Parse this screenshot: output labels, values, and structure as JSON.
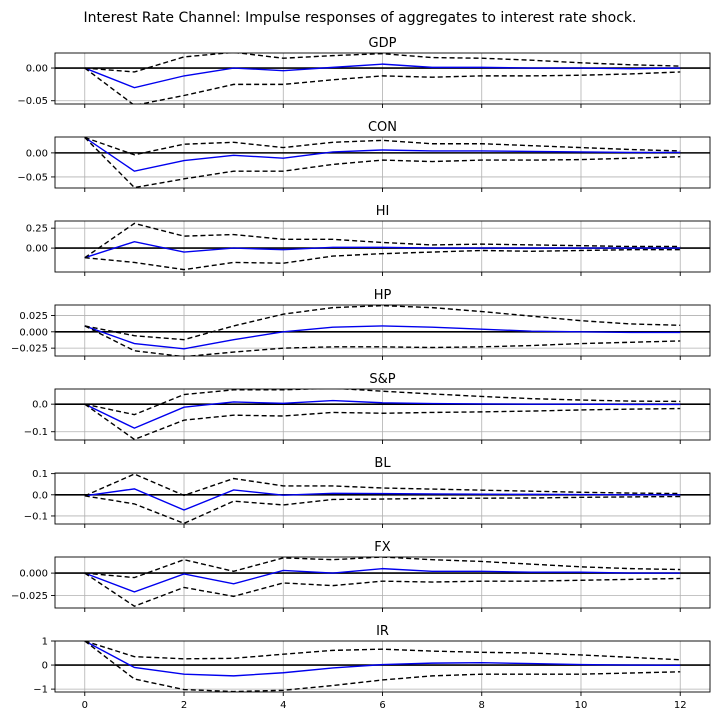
{
  "figure": {
    "title": "Interest Rate Channel: Impulse responses of aggregates to interest rate shock."
  },
  "colors": {
    "irf": "#0000ee",
    "bands": "#000000",
    "zero_line": "#000000",
    "grid": "#b0b0b0"
  },
  "chart_data": [
    {
      "type": "line",
      "title": "GDP",
      "xlabel": "",
      "ylabel": "",
      "x": [
        0,
        1,
        2,
        3,
        4,
        5,
        6,
        7,
        8,
        9,
        10,
        11,
        12
      ],
      "xlim": [
        -0.6,
        12.6
      ],
      "xticks": [
        0,
        2,
        4,
        6,
        8,
        10,
        12
      ],
      "show_xticks": false,
      "ylim": [
        -0.055,
        0.023
      ],
      "yticks": [
        0.0,
        -0.05
      ],
      "ytick_labels": [
        "0.00",
        "−0.05"
      ],
      "grid": true,
      "series": [
        {
          "role": "irf",
          "values": [
            0.0,
            -0.03,
            -0.012,
            0.0,
            -0.004,
            0.001,
            0.006,
            0.001,
            0.001,
            0.0,
            0.0,
            -0.001,
            0.0
          ]
        },
        {
          "role": "upper",
          "values": [
            0.0,
            -0.006,
            0.017,
            0.024,
            0.015,
            0.019,
            0.022,
            0.016,
            0.015,
            0.012,
            0.008,
            0.005,
            0.003
          ]
        },
        {
          "role": "lower",
          "values": [
            0.0,
            -0.057,
            -0.042,
            -0.025,
            -0.025,
            -0.018,
            -0.012,
            -0.014,
            -0.012,
            -0.012,
            -0.011,
            -0.009,
            -0.006
          ]
        }
      ]
    },
    {
      "type": "line",
      "title": "CON",
      "xlabel": "",
      "ylabel": "",
      "x": [
        0,
        1,
        2,
        3,
        4,
        5,
        6,
        7,
        8,
        9,
        10,
        11,
        12
      ],
      "xlim": [
        -0.6,
        12.6
      ],
      "xticks": [
        0,
        2,
        4,
        6,
        8,
        10,
        12
      ],
      "show_xticks": false,
      "ylim": [
        -0.073,
        0.033
      ],
      "yticks": [
        0.0,
        -0.05
      ],
      "ytick_labels": [
        "0.00",
        "−0.05"
      ],
      "grid": true,
      "series": [
        {
          "role": "irf",
          "values": [
            0.032,
            -0.038,
            -0.016,
            -0.005,
            -0.011,
            0.002,
            0.006,
            0.004,
            0.004,
            0.003,
            0.002,
            0.001,
            0.001
          ]
        },
        {
          "role": "upper",
          "values": [
            0.032,
            -0.004,
            0.018,
            0.022,
            0.011,
            0.022,
            0.026,
            0.019,
            0.019,
            0.015,
            0.011,
            0.007,
            0.004
          ]
        },
        {
          "role": "lower",
          "values": [
            0.032,
            -0.072,
            -0.054,
            -0.038,
            -0.038,
            -0.024,
            -0.015,
            -0.018,
            -0.015,
            -0.015,
            -0.014,
            -0.011,
            -0.008
          ]
        }
      ]
    },
    {
      "type": "line",
      "title": "HI",
      "xlabel": "",
      "ylabel": "",
      "x": [
        0,
        1,
        2,
        3,
        4,
        5,
        6,
        7,
        8,
        9,
        10,
        11,
        12
      ],
      "xlim": [
        -0.6,
        12.6
      ],
      "xticks": [
        0,
        2,
        4,
        6,
        8,
        10,
        12
      ],
      "show_xticks": false,
      "ylim": [
        -0.3,
        0.34
      ],
      "yticks": [
        0.25,
        0.0
      ],
      "ytick_labels": [
        "0.25",
        "0.00"
      ],
      "grid": true,
      "series": [
        {
          "role": "irf",
          "values": [
            -0.12,
            0.08,
            -0.05,
            0.0,
            -0.02,
            0.01,
            0.01,
            0.0,
            0.0,
            0.0,
            0.0,
            0.0,
            0.0
          ]
        },
        {
          "role": "upper",
          "values": [
            -0.12,
            0.31,
            0.15,
            0.17,
            0.11,
            0.11,
            0.07,
            0.04,
            0.05,
            0.04,
            0.03,
            0.02,
            0.02
          ]
        },
        {
          "role": "lower",
          "values": [
            -0.12,
            -0.18,
            -0.27,
            -0.18,
            -0.19,
            -0.1,
            -0.07,
            -0.05,
            -0.03,
            -0.04,
            -0.03,
            -0.02,
            -0.02
          ]
        }
      ]
    },
    {
      "type": "line",
      "title": "HP",
      "xlabel": "",
      "ylabel": "",
      "x": [
        0,
        1,
        2,
        3,
        4,
        5,
        6,
        7,
        8,
        9,
        10,
        11,
        12
      ],
      "xlim": [
        -0.6,
        12.6
      ],
      "xticks": [
        0,
        2,
        4,
        6,
        8,
        10,
        12
      ],
      "show_xticks": false,
      "ylim": [
        -0.037,
        0.041
      ],
      "yticks": [
        0.025,
        0.0,
        -0.025
      ],
      "ytick_labels": [
        "0.025",
        "0.000",
        "−0.025"
      ],
      "grid": true,
      "series": [
        {
          "role": "irf",
          "values": [
            0.009,
            -0.018,
            -0.026,
            -0.012,
            0.0,
            0.007,
            0.009,
            0.007,
            0.004,
            0.001,
            0.0,
            -0.001,
            -0.001
          ]
        },
        {
          "role": "upper",
          "values": [
            0.009,
            -0.006,
            -0.012,
            0.009,
            0.027,
            0.037,
            0.04,
            0.037,
            0.031,
            0.024,
            0.017,
            0.012,
            0.01
          ]
        },
        {
          "role": "lower",
          "values": [
            0.009,
            -0.029,
            -0.038,
            -0.031,
            -0.025,
            -0.023,
            -0.023,
            -0.024,
            -0.023,
            -0.021,
            -0.018,
            -0.016,
            -0.014
          ]
        }
      ]
    },
    {
      "type": "line",
      "title": "S&P",
      "xlabel": "",
      "ylabel": "",
      "x": [
        0,
        1,
        2,
        3,
        4,
        5,
        6,
        7,
        8,
        9,
        10,
        11,
        12
      ],
      "xlim": [
        -0.6,
        12.6
      ],
      "xticks": [
        0,
        2,
        4,
        6,
        8,
        10,
        12
      ],
      "show_xticks": false,
      "ylim": [
        -0.13,
        0.055
      ],
      "yticks": [
        0.0,
        -0.1
      ],
      "ytick_labels": [
        "0.0",
        "−0.1"
      ],
      "grid": true,
      "series": [
        {
          "role": "irf",
          "values": [
            0.0,
            -0.087,
            -0.011,
            0.008,
            0.003,
            0.013,
            0.005,
            0.002,
            0.001,
            0.0,
            0.0,
            -0.001,
            -0.001
          ]
        },
        {
          "role": "upper",
          "values": [
            0.0,
            -0.038,
            0.035,
            0.052,
            0.052,
            0.058,
            0.047,
            0.037,
            0.028,
            0.02,
            0.015,
            0.011,
            0.01
          ]
        },
        {
          "role": "lower",
          "values": [
            0.0,
            -0.128,
            -0.058,
            -0.04,
            -0.043,
            -0.03,
            -0.033,
            -0.03,
            -0.028,
            -0.025,
            -0.021,
            -0.018,
            -0.016
          ]
        }
      ]
    },
    {
      "type": "line",
      "title": "BL",
      "xlabel": "",
      "ylabel": "",
      "x": [
        0,
        1,
        2,
        3,
        4,
        5,
        6,
        7,
        8,
        9,
        10,
        11,
        12
      ],
      "xlim": [
        -0.6,
        12.6
      ],
      "xticks": [
        0,
        2,
        4,
        6,
        8,
        10,
        12
      ],
      "show_xticks": false,
      "ylim": [
        -0.138,
        0.103
      ],
      "yticks": [
        0.1,
        0.0,
        -0.1
      ],
      "ytick_labels": [
        "0.1",
        "0.0",
        "−0.1"
      ],
      "grid": true,
      "series": [
        {
          "role": "irf",
          "values": [
            -0.005,
            0.028,
            -0.072,
            0.023,
            -0.002,
            0.007,
            0.006,
            0.004,
            0.003,
            0.002,
            0.001,
            0.0,
            0.0
          ]
        },
        {
          "role": "upper",
          "values": [
            -0.005,
            0.098,
            -0.003,
            0.077,
            0.042,
            0.042,
            0.032,
            0.027,
            0.022,
            0.017,
            0.012,
            0.008,
            0.006
          ]
        },
        {
          "role": "lower",
          "values": [
            -0.005,
            -0.043,
            -0.135,
            -0.03,
            -0.048,
            -0.022,
            -0.02,
            -0.017,
            -0.016,
            -0.015,
            -0.012,
            -0.01,
            -0.008
          ]
        }
      ]
    },
    {
      "type": "line",
      "title": "FX",
      "xlabel": "",
      "ylabel": "",
      "x": [
        0,
        1,
        2,
        3,
        4,
        5,
        6,
        7,
        8,
        9,
        10,
        11,
        12
      ],
      "xlim": [
        -0.6,
        12.6
      ],
      "xticks": [
        0,
        2,
        4,
        6,
        8,
        10,
        12
      ],
      "show_xticks": false,
      "ylim": [
        -0.039,
        0.018
      ],
      "yticks": [
        0.0,
        -0.025
      ],
      "ytick_labels": [
        "0.000",
        "−0.025"
      ],
      "grid": true,
      "series": [
        {
          "role": "irf",
          "values": [
            0.0,
            -0.021,
            -0.001,
            -0.012,
            0.003,
            0.0,
            0.005,
            0.002,
            0.002,
            0.001,
            0.001,
            0.0,
            0.0
          ]
        },
        {
          "role": "upper",
          "values": [
            0.0,
            -0.005,
            0.015,
            0.002,
            0.017,
            0.015,
            0.018,
            0.015,
            0.013,
            0.01,
            0.007,
            0.005,
            0.004
          ]
        },
        {
          "role": "lower",
          "values": [
            0.0,
            -0.037,
            -0.016,
            -0.026,
            -0.011,
            -0.014,
            -0.009,
            -0.01,
            -0.009,
            -0.009,
            -0.008,
            -0.007,
            -0.006
          ]
        }
      ]
    },
    {
      "type": "line",
      "title": "IR",
      "xlabel": "",
      "ylabel": "",
      "x": [
        0,
        1,
        2,
        3,
        4,
        5,
        6,
        7,
        8,
        9,
        10,
        11,
        12
      ],
      "xlim": [
        -0.6,
        12.6
      ],
      "xticks": [
        0,
        2,
        4,
        6,
        8,
        10,
        12
      ],
      "show_xticks": true,
      "ylim": [
        -1.12,
        1.0
      ],
      "yticks": [
        1,
        0,
        -1
      ],
      "ytick_labels": [
        "1",
        "0",
        "−1"
      ],
      "grid": true,
      "series": [
        {
          "role": "irf",
          "values": [
            1.0,
            -0.1,
            -0.38,
            -0.45,
            -0.32,
            -0.12,
            0.02,
            0.08,
            0.1,
            0.06,
            0.02,
            0.0,
            -0.01
          ]
        },
        {
          "role": "upper",
          "values": [
            1.0,
            0.35,
            0.26,
            0.28,
            0.45,
            0.61,
            0.66,
            0.58,
            0.53,
            0.5,
            0.42,
            0.32,
            0.22
          ]
        },
        {
          "role": "lower",
          "values": [
            1.0,
            -0.58,
            -1.02,
            -1.1,
            -1.05,
            -0.85,
            -0.62,
            -0.45,
            -0.38,
            -0.38,
            -0.38,
            -0.33,
            -0.28
          ]
        }
      ]
    }
  ]
}
